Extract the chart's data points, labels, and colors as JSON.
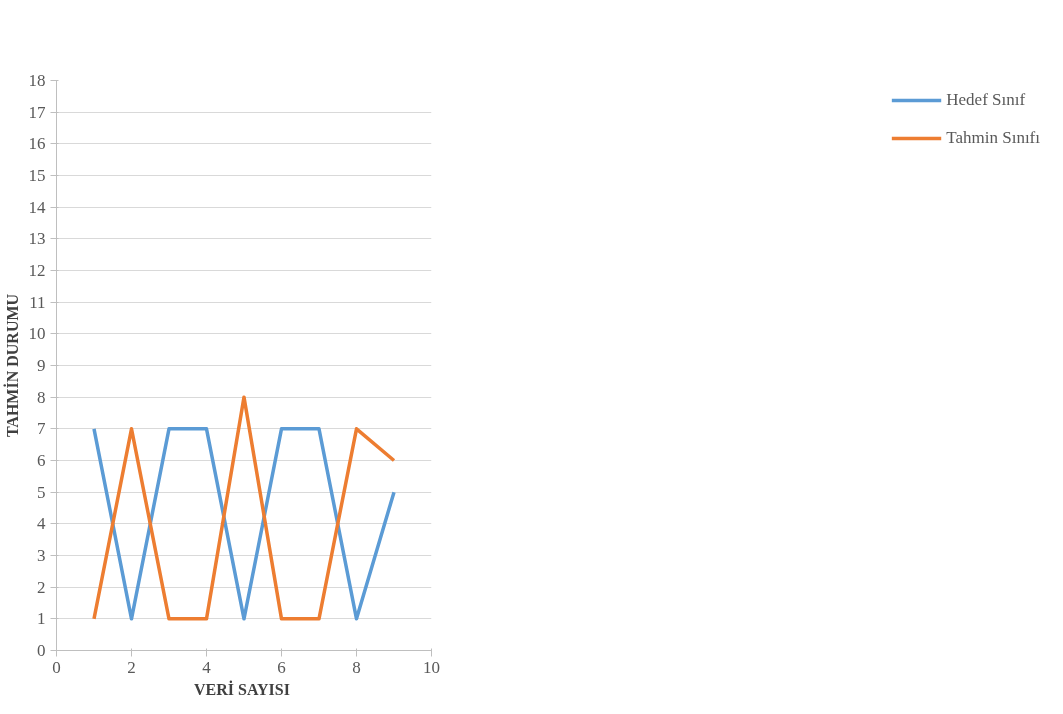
{
  "chart_data": {
    "type": "line",
    "xlabel": "VERİ  SAYISI",
    "ylabel": "TAHMİN DURUMU",
    "x": [
      1,
      2,
      3,
      4,
      5,
      6,
      7,
      8,
      9
    ],
    "series": [
      {
        "name": "Hedef Sınıf",
        "color": "#5b9bd5",
        "values": [
          7,
          1,
          7,
          7,
          1,
          7,
          7,
          1,
          5
        ]
      },
      {
        "name": "Tahmin Sınıfı",
        "color": "#ed7d31",
        "values": [
          1,
          7,
          1,
          1,
          8,
          1,
          1,
          7,
          6
        ]
      }
    ],
    "xlim": [
      0,
      10
    ],
    "xticks": [
      0,
      2,
      4,
      6,
      8,
      10
    ],
    "ylim": [
      0,
      18
    ],
    "yticks": [
      0,
      1,
      2,
      3,
      4,
      5,
      6,
      7,
      8,
      9,
      10,
      11,
      12,
      13,
      14,
      15,
      16,
      17,
      18
    ],
    "grid": "y",
    "legend": "right",
    "marker": "none",
    "line_style": "solid"
  }
}
